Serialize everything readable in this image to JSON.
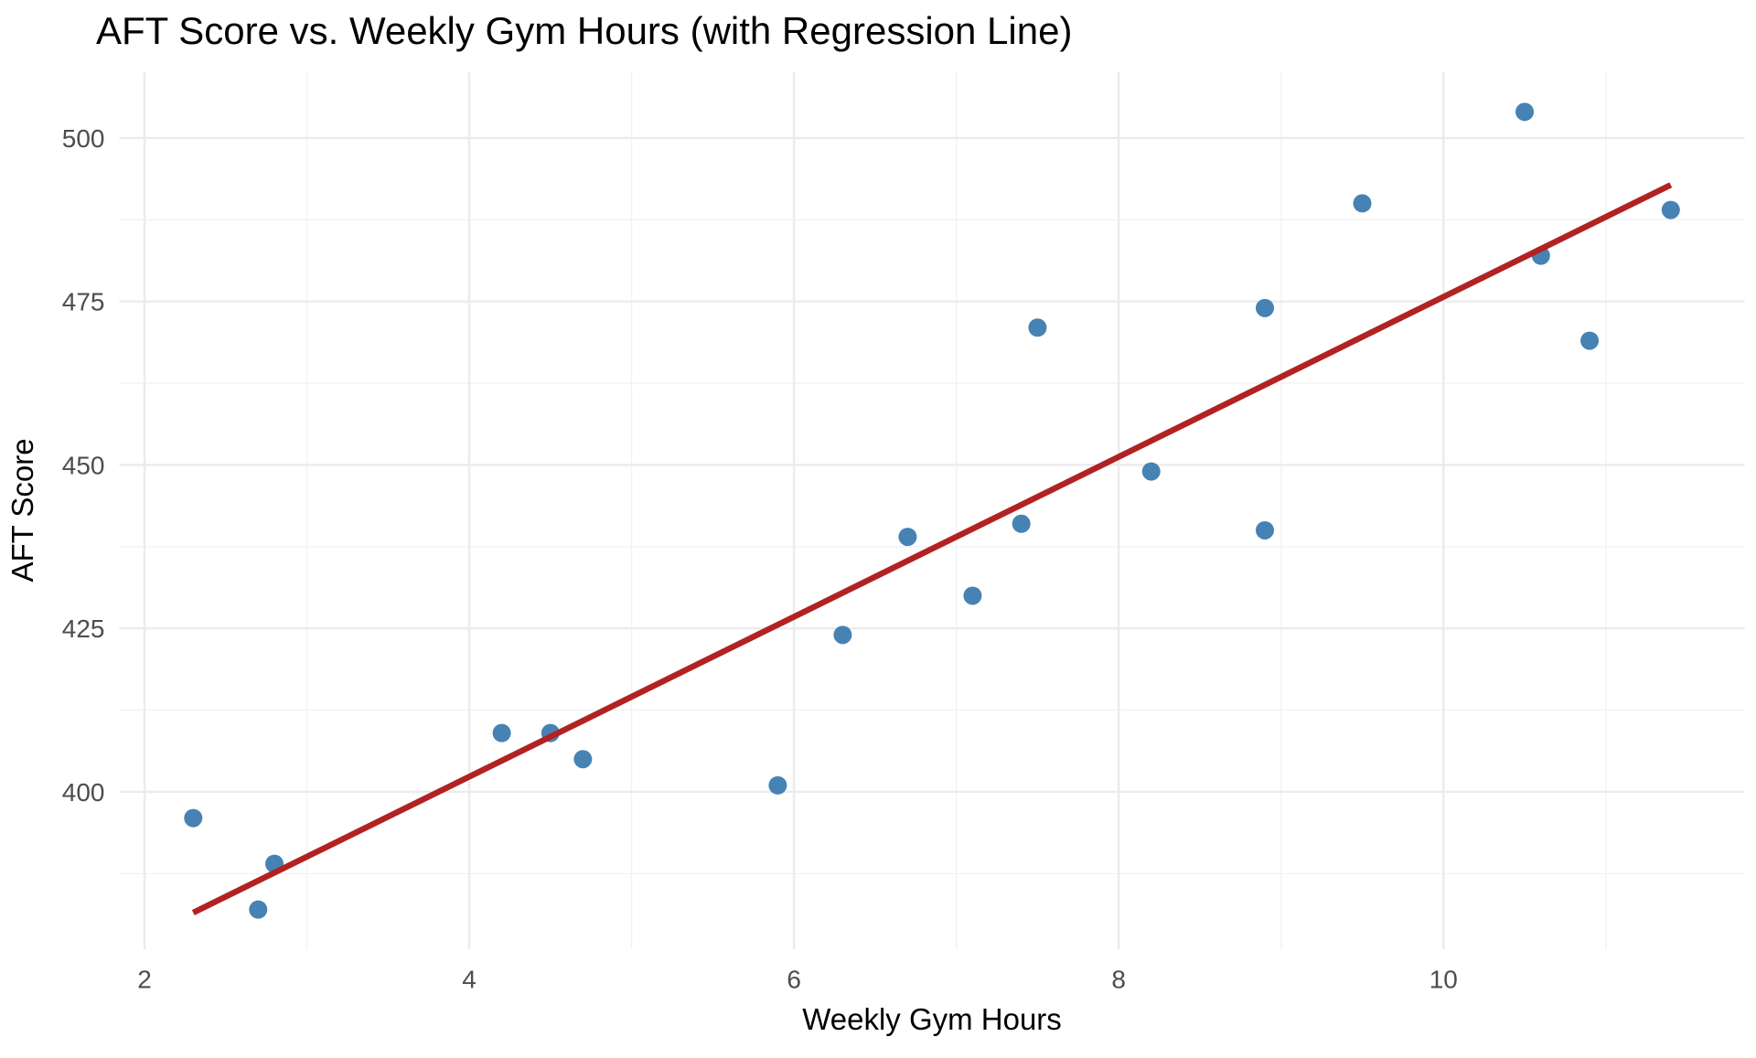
{
  "title": "AFT Score vs. Weekly Gym Hours (with Regression Line)",
  "chart_data": {
    "type": "scatter",
    "title": "AFT Score vs. Weekly Gym Hours (with Regression Line)",
    "xlabel": "Weekly Gym Hours",
    "ylabel": "AFT Score",
    "xlim": [
      1.845,
      11.855
    ],
    "ylim": [
      375.9,
      510.1
    ],
    "x_major_ticks": [
      2,
      4,
      6,
      8,
      10
    ],
    "x_minor_gridlines": [
      3,
      5,
      7,
      9,
      11
    ],
    "y_major_ticks": [
      400,
      425,
      450,
      475,
      500
    ],
    "y_minor_gridlines": [
      387.5,
      412.5,
      437.5,
      462.5,
      487.5
    ],
    "grid": true,
    "legend": "none",
    "points": [
      {
        "x": 2.3,
        "y": 396
      },
      {
        "x": 2.7,
        "y": 382
      },
      {
        "x": 2.8,
        "y": 389
      },
      {
        "x": 4.2,
        "y": 409
      },
      {
        "x": 4.5,
        "y": 409
      },
      {
        "x": 4.7,
        "y": 405
      },
      {
        "x": 5.9,
        "y": 401
      },
      {
        "x": 6.3,
        "y": 424
      },
      {
        "x": 6.7,
        "y": 439
      },
      {
        "x": 7.1,
        "y": 430
      },
      {
        "x": 7.4,
        "y": 441
      },
      {
        "x": 7.5,
        "y": 471
      },
      {
        "x": 8.2,
        "y": 449
      },
      {
        "x": 8.9,
        "y": 474
      },
      {
        "x": 8.9,
        "y": 440
      },
      {
        "x": 9.5,
        "y": 490
      },
      {
        "x": 10.5,
        "y": 504
      },
      {
        "x": 10.6,
        "y": 482
      },
      {
        "x": 10.9,
        "y": 469
      },
      {
        "x": 11.4,
        "y": 489
      }
    ],
    "regression_line": {
      "slope": 12.23,
      "intercept": 353.4,
      "x_start": 2.3,
      "x_end": 11.4
    },
    "colors": {
      "point": "#4682B4",
      "regression": "#B22222",
      "grid_major": "#EBEBEB",
      "grid_minor": "#F2F2F2",
      "tick_label": "#4D4D4D",
      "text": "#000000",
      "background": "#FFFFFF"
    }
  }
}
